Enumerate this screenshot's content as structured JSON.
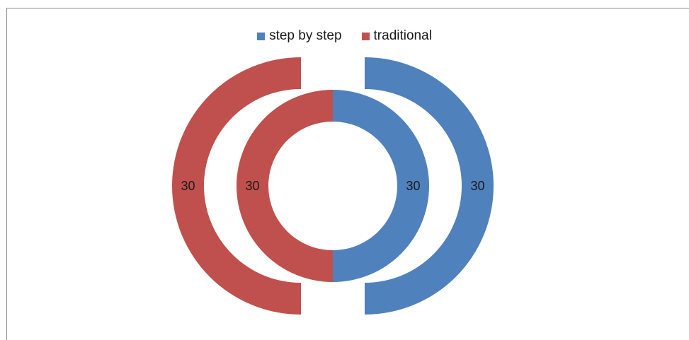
{
  "chart_data": {
    "type": "pie",
    "subtype": "doughnut",
    "series": [
      {
        "name": "step by step",
        "color": "#4f81bd"
      },
      {
        "name": "traditional",
        "color": "#c0504d"
      }
    ],
    "rings": [
      {
        "position": "inner",
        "values": [
          30,
          30
        ]
      },
      {
        "position": "outer",
        "values": [
          30,
          30
        ]
      }
    ],
    "legend_position": "top"
  }
}
